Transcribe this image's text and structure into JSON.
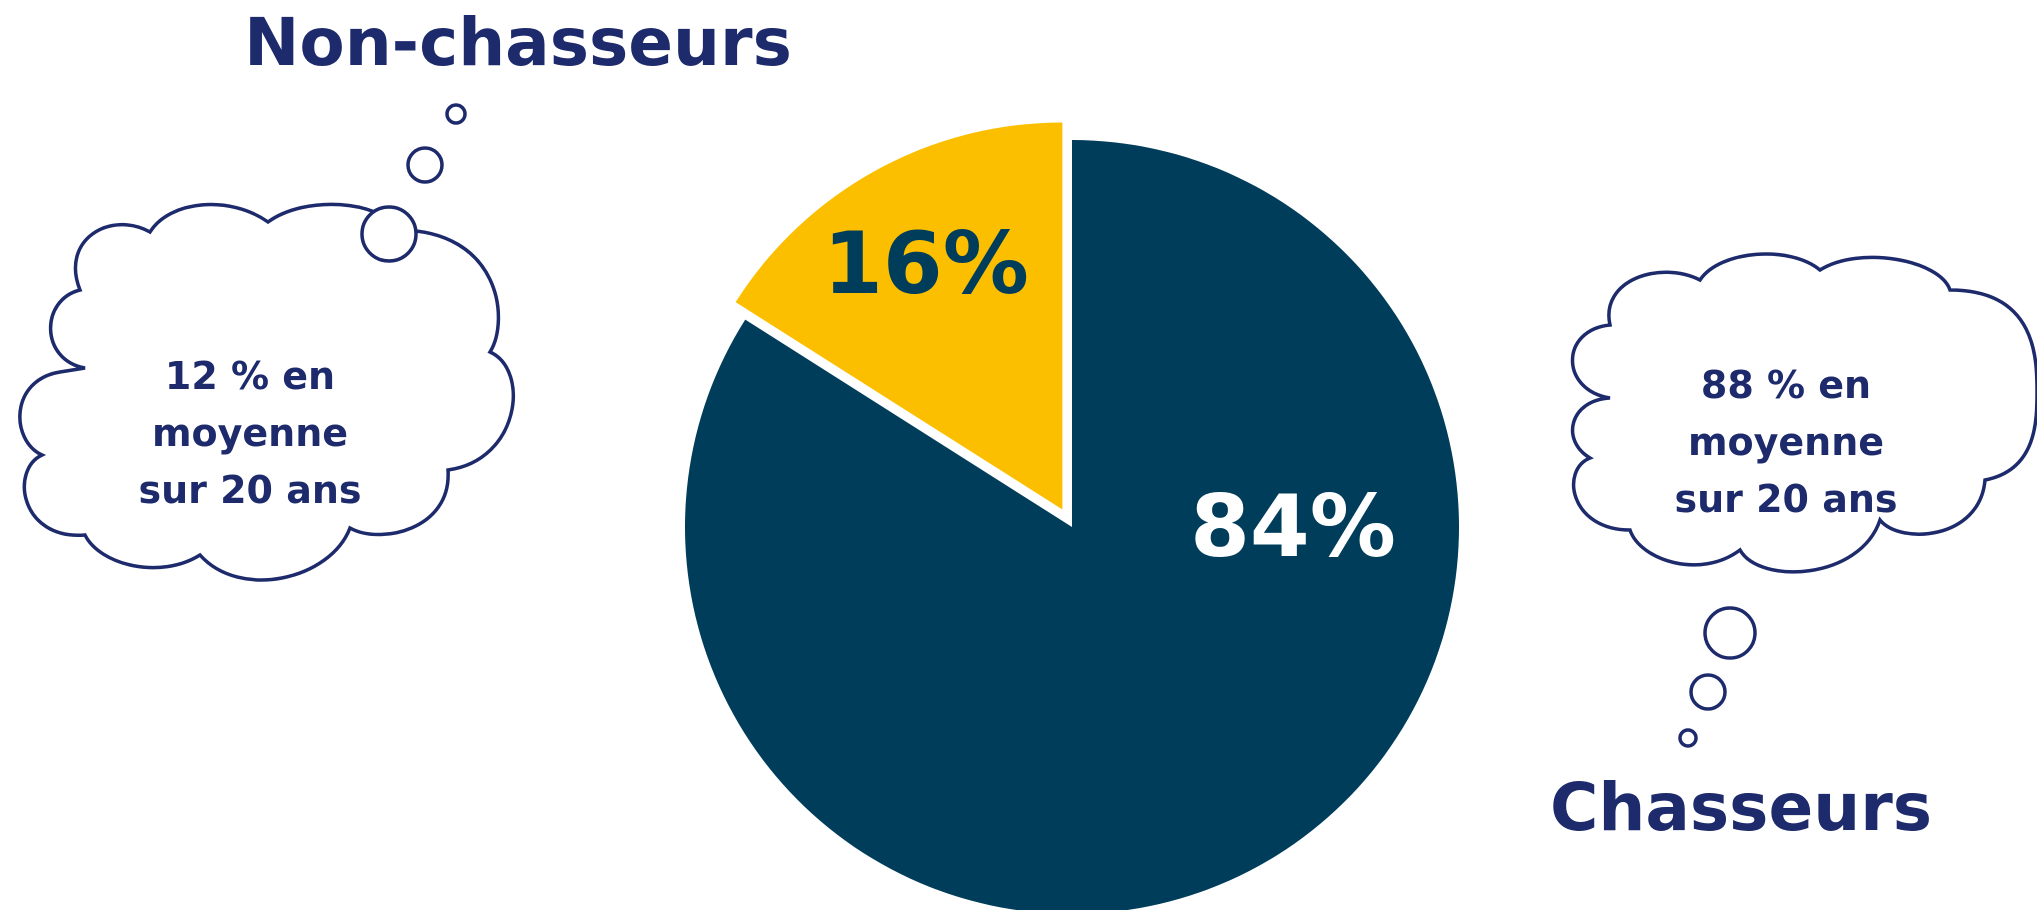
{
  "chart_data": {
    "type": "pie",
    "series": [
      {
        "name": "Non-chasseurs",
        "value": 16,
        "label": "16%",
        "color": "#fbbf00",
        "label_color": "#003d5b",
        "exploded": true
      },
      {
        "name": "Chasseurs",
        "value": 84,
        "label": "84%",
        "color": "#003d5b",
        "label_color": "#ffffff",
        "exploded": false
      }
    ],
    "start": "12 o'clock, counter-clockwise for the first slice",
    "annotations": [
      {
        "series": "Non-chasseurs",
        "lines": [
          "12 % en",
          "moyenne",
          "sur 20 ans"
        ]
      },
      {
        "series": "Chasseurs",
        "lines": [
          "88 % en",
          "moyenne",
          "sur 20 ans"
        ]
      }
    ]
  }
}
